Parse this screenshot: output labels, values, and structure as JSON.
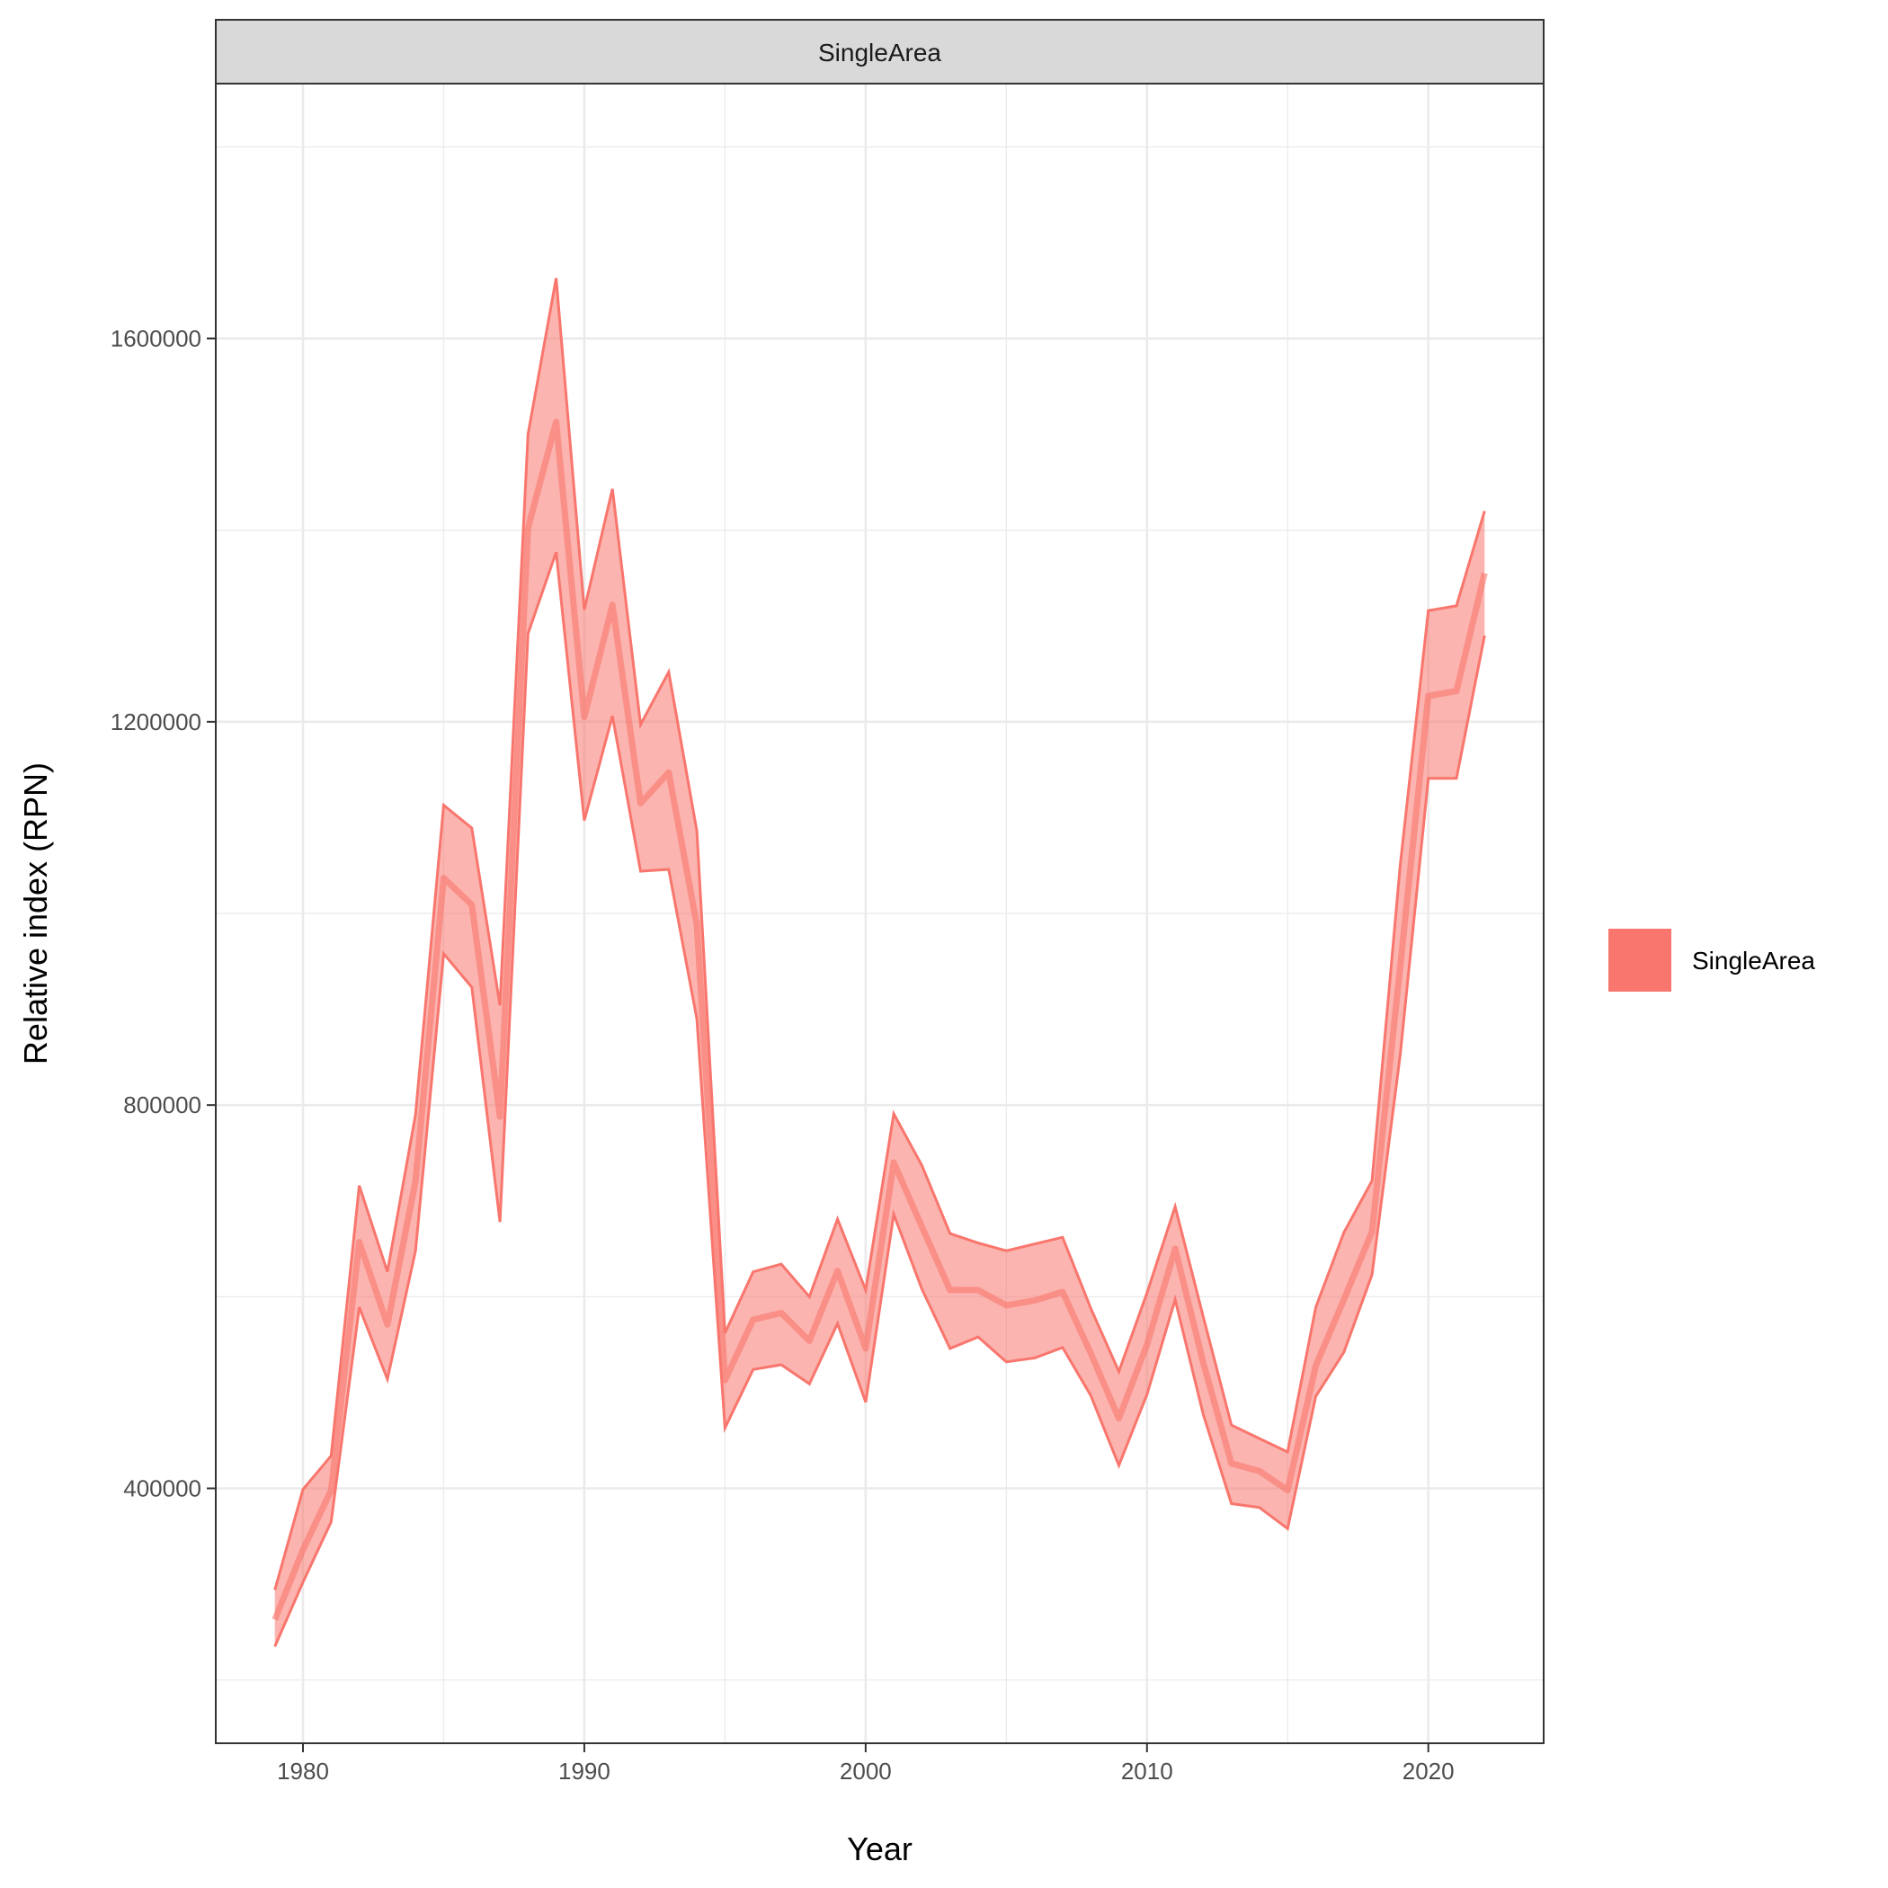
{
  "chart_data": {
    "type": "area",
    "facet_label": "SingleArea",
    "xlabel": "Year",
    "ylabel": "Relative index (RPN)",
    "xlim": [
      1976.9,
      2024.1
    ],
    "ylim": [
      134000,
      1866000
    ],
    "x_ticks": [
      1980,
      1990,
      2000,
      2010,
      2020
    ],
    "x_tick_labels": [
      "1980",
      "1990",
      "2000",
      "2010",
      "2020"
    ],
    "y_ticks": [
      400000,
      800000,
      1200000,
      1600000
    ],
    "y_tick_labels": [
      "400000",
      "800000",
      "1200000",
      "1600000"
    ],
    "grid": true,
    "legend_position": "right",
    "series": [
      {
        "name": "SingleArea",
        "color": "#F8766D",
        "years": [
          1979,
          1980,
          1981,
          1982,
          1983,
          1984,
          1985,
          1986,
          1987,
          1988,
          1989,
          1990,
          1991,
          1992,
          1993,
          1994,
          1995,
          1996,
          1997,
          1998,
          1999,
          2000,
          2001,
          2002,
          2003,
          2004,
          2005,
          2006,
          2007,
          2008,
          2009,
          2010,
          2011,
          2012,
          2013,
          2014,
          2015,
          2016,
          2017,
          2018,
          2019,
          2020,
          2021,
          2022
        ],
        "values": [
          263000,
          336000,
          398000,
          657000,
          571000,
          721000,
          1037000,
          1009000,
          788000,
          1402000,
          1513000,
          1205000,
          1322000,
          1115000,
          1147000,
          988000,
          513000,
          576000,
          583000,
          554000,
          627000,
          546000,
          740000,
          673000,
          607000,
          607000,
          591000,
          596000,
          605000,
          541000,
          473000,
          550000,
          650000,
          531000,
          426000,
          418000,
          398000,
          528000,
          597000,
          668000,
          944000,
          1227000,
          1232000,
          1355000
        ],
        "lower": [
          235000,
          302000,
          365000,
          589000,
          514000,
          648000,
          958000,
          923000,
          678000,
          1292000,
          1377000,
          1097000,
          1206000,
          1044000,
          1046000,
          890000,
          463000,
          524000,
          529000,
          509000,
          572000,
          490000,
          686000,
          608000,
          546000,
          558000,
          532000,
          536000,
          547000,
          497000,
          424000,
          498000,
          597000,
          477000,
          384000,
          380000,
          358000,
          496000,
          542000,
          623000,
          852000,
          1141000,
          1141000,
          1290000
        ],
        "upper": [
          294000,
          399000,
          434000,
          716000,
          626000,
          790000,
          1113000,
          1089000,
          904000,
          1500000,
          1663000,
          1317000,
          1443000,
          1197000,
          1252000,
          1086000,
          562000,
          626000,
          634000,
          600000,
          681000,
          607000,
          791000,
          737000,
          666000,
          656000,
          648000,
          655000,
          662000,
          588000,
          522000,
          604000,
          694000,
          579000,
          466000,
          452000,
          438000,
          589000,
          667000,
          721000,
          1050000,
          1316000,
          1321000,
          1420000
        ]
      }
    ]
  }
}
